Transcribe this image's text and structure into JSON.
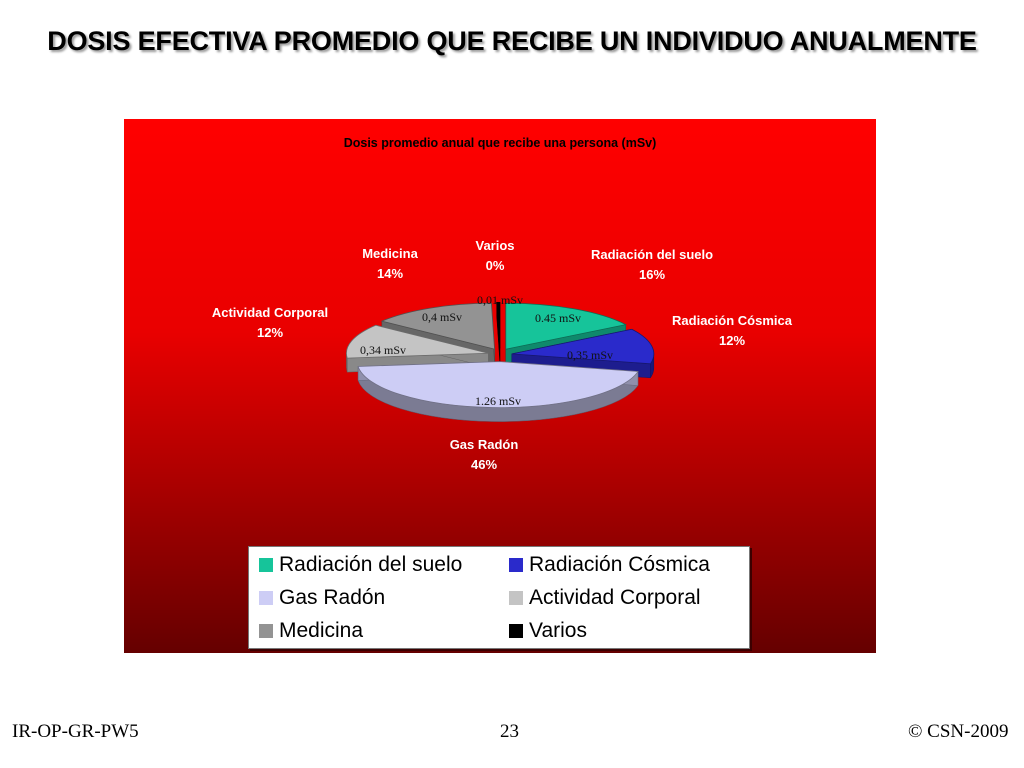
{
  "slide": {
    "title": "DOSIS EFECTIVA PROMEDIO QUE RECIBE UN INDIVIDUO ANUALMENTE"
  },
  "footer": {
    "left": "IR-OP-GR-PW5",
    "center": "23",
    "right": "© CSN-2009"
  },
  "chart_data": {
    "type": "pie",
    "title": "Dosis promedio anual que recibe una persona (mSv)",
    "three_d": true,
    "exploded": true,
    "background": "red gradient",
    "legend_position": "bottom",
    "slices": [
      {
        "name": "Radiación del suelo",
        "value_label": "0.45 mSv",
        "value": 0.45,
        "percent_label": "16%",
        "color": "#16c49a"
      },
      {
        "name": "Radiación Cósmica",
        "value_label": "0,35 mSv",
        "value": 0.35,
        "percent_label": "12%",
        "color": "#2a2acb"
      },
      {
        "name": "Gas Radón",
        "value_label": "1.26 mSv",
        "value": 1.26,
        "percent_label": "46%",
        "color": "#cdcdf5"
      },
      {
        "name": "Actividad Corporal",
        "value_label": "0,34 mSv",
        "value": 0.34,
        "percent_label": "12%",
        "color": "#c4c4c4"
      },
      {
        "name": "Medicina",
        "value_label": "0,4 mSv",
        "value": 0.4,
        "percent_label": "14%",
        "color": "#939393"
      },
      {
        "name": "Varios",
        "value_label": "0,01 mSv",
        "value": 0.01,
        "percent_label": "0%",
        "color": "#000000"
      }
    ]
  }
}
